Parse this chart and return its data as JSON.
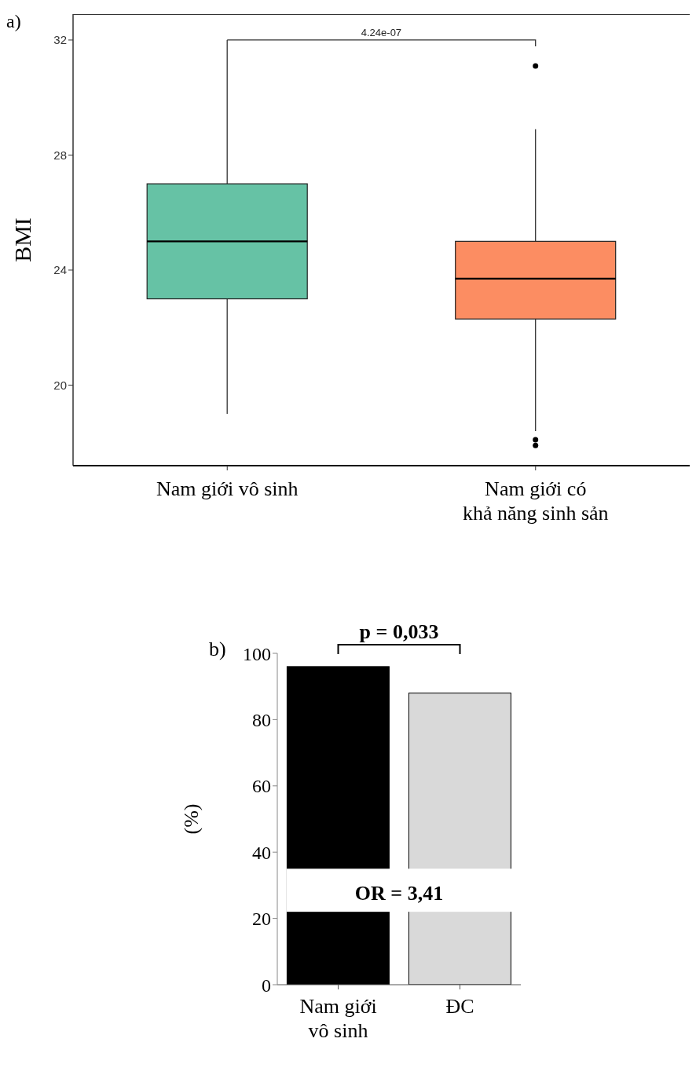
{
  "chart_data": [
    {
      "type": "box",
      "title": "a)",
      "ylabel": "BMI",
      "categories": [
        "Nam giới vô sinh",
        "Nam giới có\nkhả năng sinh sản"
      ],
      "colors": [
        "#66c2a5",
        "#fc8d62"
      ],
      "boxes": [
        {
          "low": 19.0,
          "q1": 23.0,
          "median": 25.0,
          "q3": 27.0,
          "high": 32.0
        },
        {
          "low": 18.4,
          "q1": 22.3,
          "median": 23.7,
          "q3": 25.0,
          "high": 28.9,
          "outliers": [
            31.1,
            18.1,
            17.9
          ]
        }
      ],
      "ylim": [
        17.2,
        32.9
      ],
      "yticks": [
        20,
        24,
        28,
        32
      ],
      "annotations": [
        "4.24e-07"
      ]
    },
    {
      "type": "bar",
      "title": "b)",
      "ylabel": "(%)",
      "categories": [
        "Nam giới\nvô sinh",
        "ĐC"
      ],
      "values": [
        96,
        88
      ],
      "colors": [
        "#000000",
        "#d9d9d9"
      ],
      "ylim": [
        0,
        100
      ],
      "yticks": [
        0,
        20,
        40,
        60,
        80,
        100
      ],
      "annotations": [
        "p = 0,033",
        "OR = 3,41"
      ]
    }
  ]
}
